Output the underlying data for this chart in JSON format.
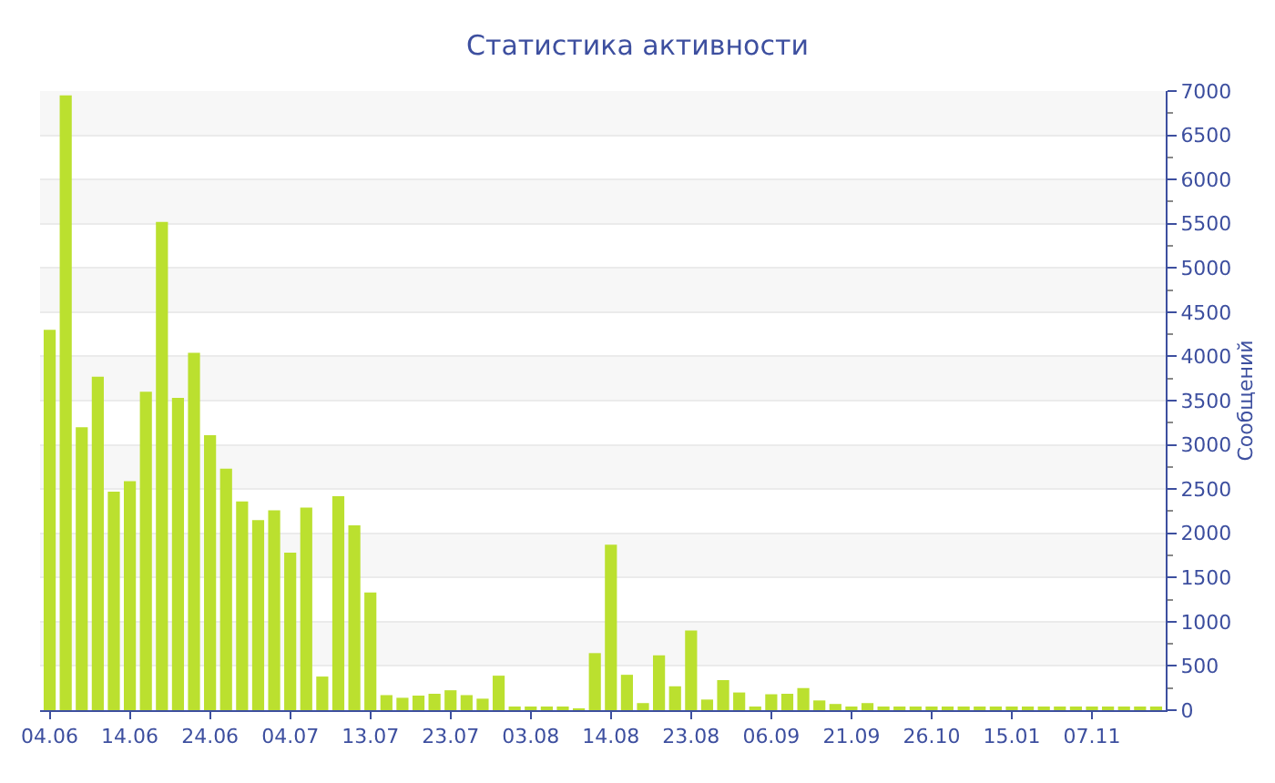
{
  "chart_data": {
    "type": "bar",
    "title": "Статистика активности",
    "ylabel": "Сообщений",
    "categories": [
      "04.06",
      null,
      null,
      null,
      null,
      "14.06",
      null,
      null,
      null,
      null,
      "24.06",
      null,
      null,
      null,
      null,
      "04.07",
      null,
      null,
      null,
      null,
      "13.07",
      null,
      null,
      null,
      null,
      "23.07",
      null,
      null,
      null,
      null,
      "03.08",
      null,
      null,
      null,
      null,
      "14.08",
      null,
      null,
      null,
      null,
      "23.08",
      null,
      null,
      null,
      null,
      "06.09",
      null,
      null,
      null,
      null,
      "21.09",
      null,
      null,
      null,
      null,
      "26.10",
      null,
      null,
      null,
      null,
      "15.01",
      null,
      null,
      null,
      null,
      "07.11",
      null,
      null,
      null,
      null
    ],
    "values": [
      4300,
      6950,
      3200,
      3770,
      2470,
      2590,
      3600,
      5520,
      3530,
      4040,
      3110,
      2730,
      2360,
      2150,
      2260,
      1780,
      2290,
      380,
      2420,
      2090,
      1330,
      170,
      140,
      165,
      185,
      225,
      170,
      130,
      390,
      40,
      25,
      25,
      30,
      20,
      645,
      1870,
      400,
      80,
      620,
      270,
      900,
      120,
      340,
      200,
      30,
      180,
      185,
      250,
      110,
      70,
      40,
      80,
      25,
      30,
      25,
      25,
      25,
      25,
      30,
      25,
      35,
      30,
      35,
      25,
      25,
      25,
      25,
      25,
      25,
      25
    ],
    "color": "#bbe02f",
    "ylim": [
      0,
      7000
    ],
    "yticks": [
      0,
      500,
      1000,
      1500,
      2000,
      2500,
      3000,
      3500,
      4000,
      4500,
      5000,
      5500,
      6000,
      6500,
      7000
    ],
    "grid": "y"
  }
}
